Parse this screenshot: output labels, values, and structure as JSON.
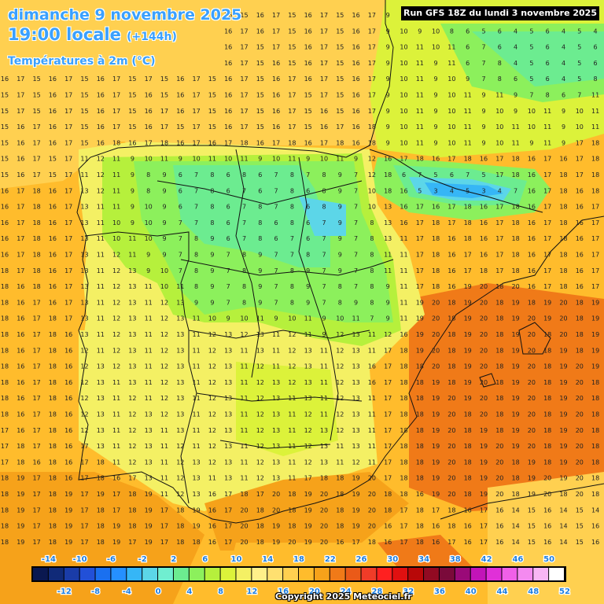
{
  "header": {
    "date": "dimanche 9 novembre 2025",
    "time_main": "19:00 locale",
    "time_lead": "(+144h)",
    "variable": "Températures à 2m (°C)"
  },
  "run_label": "Run GFS 18Z du lundi 3 novembre 2025",
  "copyright": "Copyright 2025 Meteociel.fr",
  "legend": {
    "top_labels": [
      "-14",
      "-10",
      "-6",
      "-2",
      "2",
      "6",
      "10",
      "14",
      "18",
      "22",
      "26",
      "30",
      "34",
      "38",
      "42",
      "46",
      "50"
    ],
    "bottom_labels": [
      "-12",
      "-8",
      "-4",
      "0",
      "4",
      "8",
      "12",
      "16",
      "20",
      "24",
      "28",
      "32",
      "36",
      "40",
      "44",
      "48",
      "52"
    ],
    "colors": [
      "#0a1850",
      "#102a78",
      "#1a3ca8",
      "#2250d8",
      "#1a70f0",
      "#2590ff",
      "#36b6f6",
      "#5cd6e8",
      "#70eed0",
      "#6cec90",
      "#8cf05c",
      "#b6f03c",
      "#dcf23a",
      "#f4f064",
      "#fff08a",
      "#ffe070",
      "#ffd050",
      "#ffbc2c",
      "#f6a21a",
      "#f07a18",
      "#ea5a18",
      "#f03c28",
      "#ff2020",
      "#e01010",
      "#b80808",
      "#920a22",
      "#7a0a3a",
      "#9a0a78",
      "#c214b8",
      "#e030d8",
      "#f060e8",
      "#f48af0",
      "#f8b6f4",
      "#ffffff"
    ]
  },
  "field_colors": {
    "t15": "#ffd050",
    "t17": "#ffbc2c",
    "t18": "#f6a21a",
    "t19": "#f07a18",
    "t13": "#fff08a",
    "t11": "#f4f064",
    "t9": "#b6f03c",
    "t7": "#8cf05c",
    "t5": "#6cec90",
    "t3": "#70eed0",
    "t1": "#36b6f6"
  }
}
